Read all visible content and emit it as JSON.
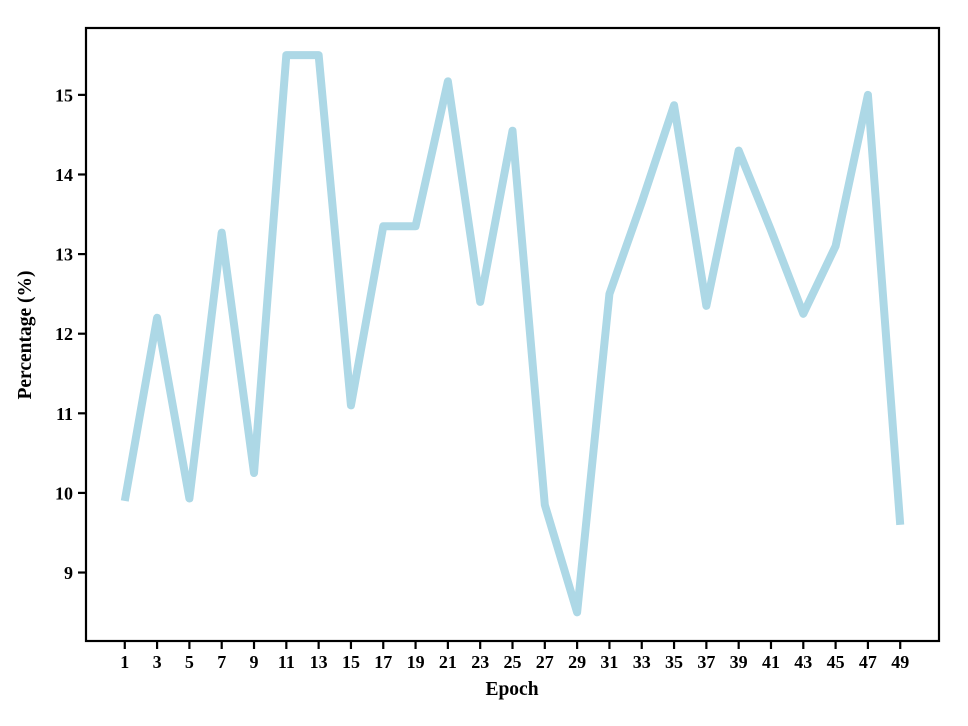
{
  "figure": {
    "background": "#ffffff"
  },
  "chart_data": {
    "type": "line",
    "title": "",
    "xlabel": "Epoch",
    "ylabel": "Percentage (%)",
    "x": [
      1,
      3,
      5,
      7,
      9,
      11,
      13,
      15,
      17,
      19,
      21,
      23,
      25,
      27,
      29,
      31,
      33,
      35,
      37,
      39,
      41,
      43,
      45,
      47,
      49
    ],
    "values": [
      9.9,
      12.2,
      9.93,
      13.27,
      10.25,
      15.5,
      15.5,
      11.1,
      13.35,
      13.35,
      15.17,
      12.4,
      14.55,
      9.85,
      8.5,
      12.5,
      13.65,
      14.87,
      12.35,
      14.3,
      13.3,
      12.25,
      13.1,
      15.0,
      9.6
    ],
    "xticks": [
      1,
      3,
      5,
      7,
      9,
      11,
      13,
      15,
      17,
      19,
      21,
      23,
      25,
      27,
      29,
      31,
      33,
      35,
      37,
      39,
      41,
      43,
      45,
      47,
      49
    ],
    "yticks": [
      9,
      10,
      11,
      12,
      13,
      14,
      15
    ],
    "xlim": [
      -1.4,
      51.4
    ],
    "ylim": [
      8.14,
      15.84
    ],
    "grid": false,
    "legend": "none",
    "line_color": "#ADD8E6",
    "line_width": 8,
    "axis_color": "#000000",
    "text_color": "#000000"
  }
}
